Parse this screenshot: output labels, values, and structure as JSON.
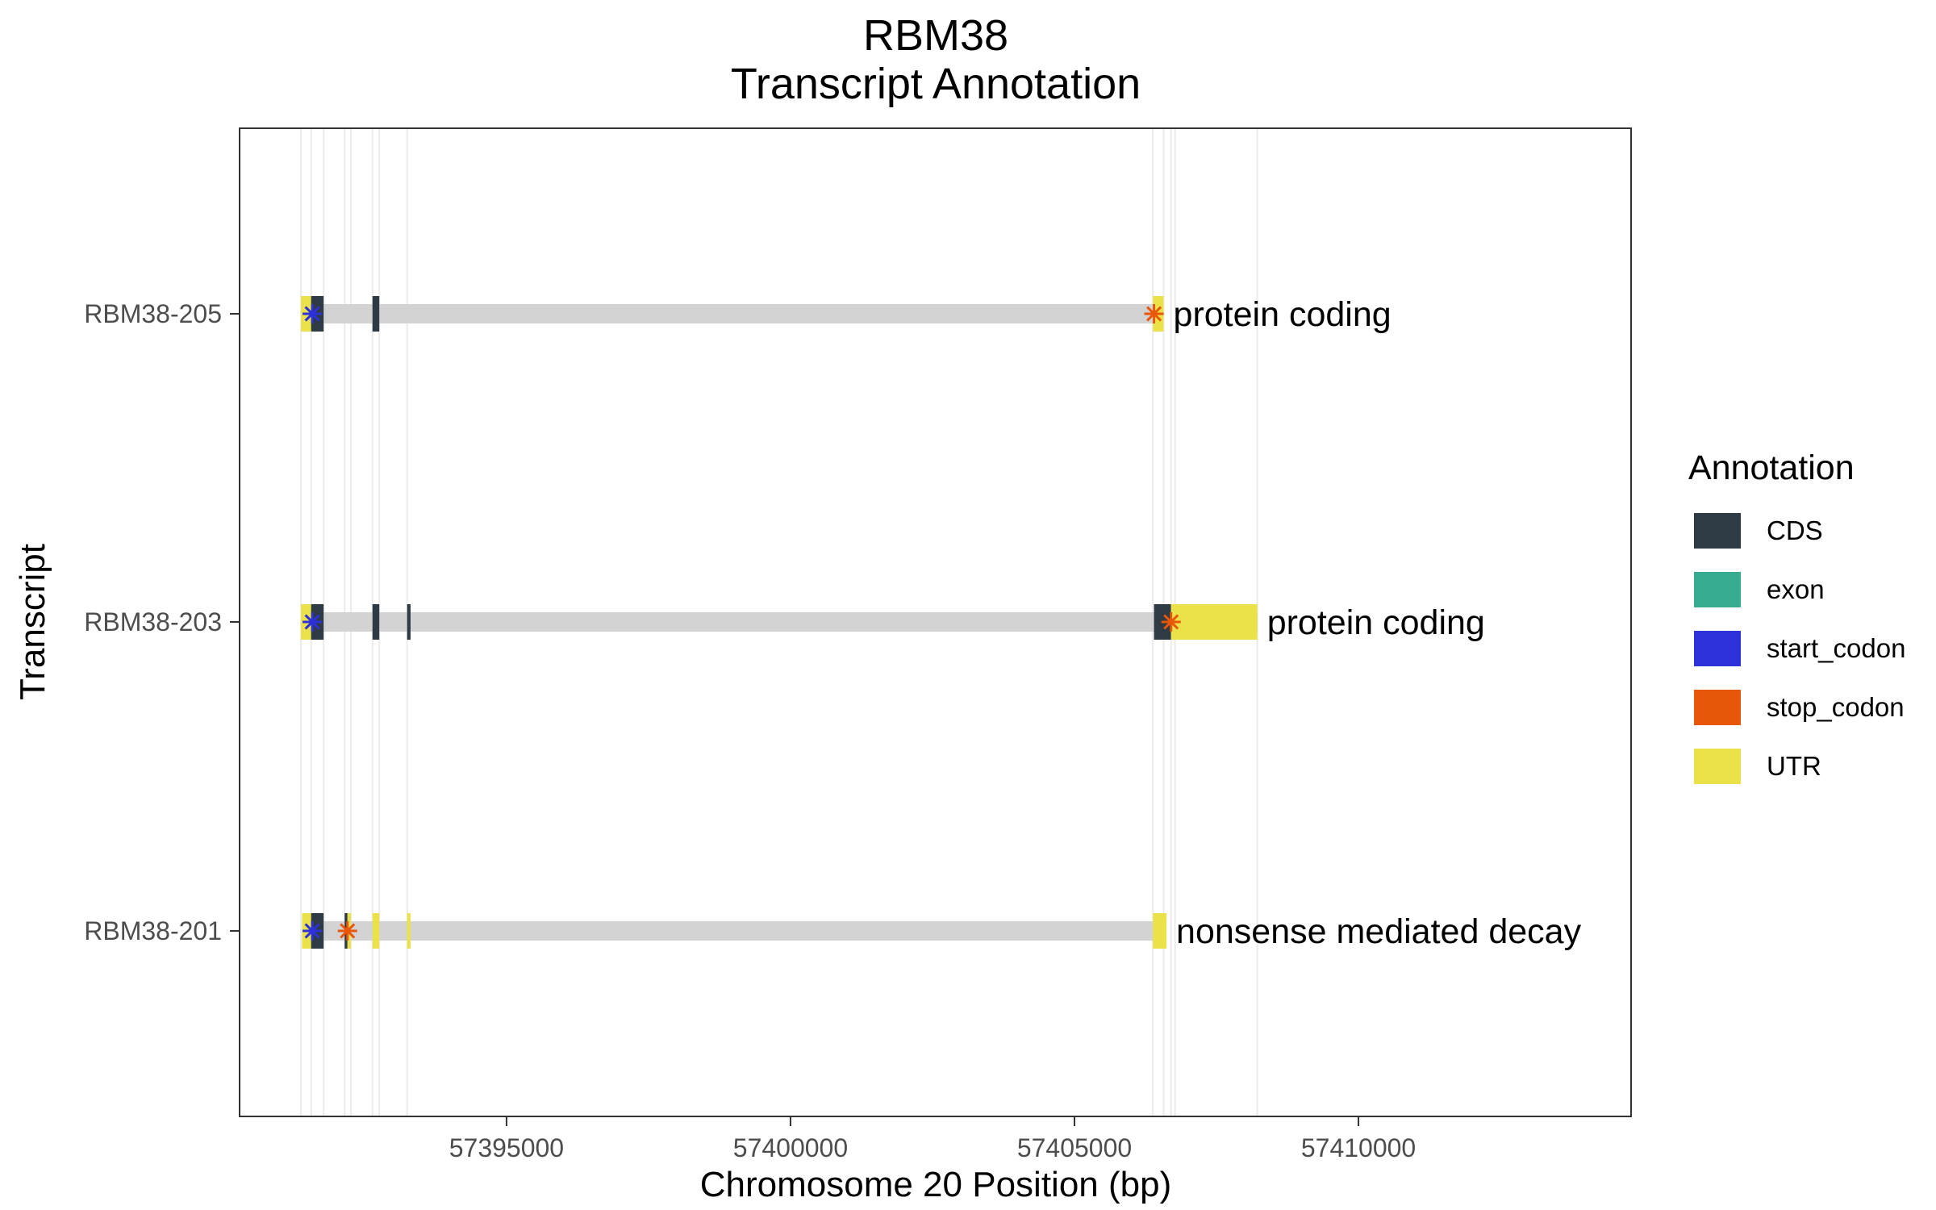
{
  "chart_data": {
    "type": "gene-track",
    "title": "RBM38",
    "subtitle": "Transcript Annotation",
    "xlabel": "Chromosome 20 Position (bp)",
    "ylabel": "Transcript",
    "xlim": [
      57390300,
      57414800
    ],
    "x_ticks": [
      57395000,
      57400000,
      57405000,
      57410000
    ],
    "x_tick_labels": [
      "57395000",
      "57400000",
      "57405000",
      "57410000"
    ],
    "grid": "vertical lines at exon boundaries",
    "transcripts": [
      {
        "name": "RBM38-205",
        "label": "protein coding",
        "span": [
          57391380,
          57406570
        ],
        "features": [
          {
            "type": "UTR",
            "start": 57391380,
            "end": 57391560
          },
          {
            "type": "CDS",
            "start": 57391560,
            "end": 57391780
          },
          {
            "type": "CDS",
            "start": 57392640,
            "end": 57392760
          },
          {
            "type": "UTR",
            "start": 57406380,
            "end": 57406570
          }
        ],
        "start_codon": 57391580,
        "stop_codon": 57406400
      },
      {
        "name": "RBM38-203",
        "label": "protein coding",
        "span": [
          57391380,
          57408220
        ],
        "features": [
          {
            "type": "UTR",
            "start": 57391380,
            "end": 57391560
          },
          {
            "type": "CDS",
            "start": 57391560,
            "end": 57391780
          },
          {
            "type": "CDS",
            "start": 57392640,
            "end": 57392760
          },
          {
            "type": "CDS",
            "start": 57393250,
            "end": 57393310
          },
          {
            "type": "CDS",
            "start": 57406400,
            "end": 57406700
          },
          {
            "type": "UTR",
            "start": 57406700,
            "end": 57408220
          }
        ],
        "start_codon": 57391580,
        "stop_codon": 57406700
      },
      {
        "name": "RBM38-201",
        "label": "nonsense mediated decay",
        "span": [
          57391400,
          57406620
        ],
        "features": [
          {
            "type": "UTR",
            "start": 57391400,
            "end": 57391560
          },
          {
            "type": "CDS",
            "start": 57391560,
            "end": 57391780
          },
          {
            "type": "CDS",
            "start": 57392150,
            "end": 57392200
          },
          {
            "type": "UTR",
            "start": 57392200,
            "end": 57392260
          },
          {
            "type": "UTR",
            "start": 57392640,
            "end": 57392760
          },
          {
            "type": "UTR",
            "start": 57393250,
            "end": 57393310
          },
          {
            "type": "UTR",
            "start": 57406380,
            "end": 57406620
          }
        ],
        "start_codon": 57391580,
        "stop_codon": 57392200
      }
    ],
    "gridlines_x": [
      57391380,
      57391560,
      57391780,
      57392150,
      57392260,
      57392640,
      57392760,
      57393250,
      57406380,
      57406570,
      57406700,
      57406770,
      57408220
    ],
    "legend": {
      "title": "Annotation",
      "position": "right",
      "items": [
        {
          "label": "CDS",
          "color": "#2e3a44"
        },
        {
          "label": "exon",
          "color": "#36ab8f"
        },
        {
          "label": "start_codon",
          "color": "#2c31d9"
        },
        {
          "label": "stop_codon",
          "color": "#e8560a"
        },
        {
          "label": "UTR",
          "color": "#ebe24a"
        }
      ]
    },
    "colors": {
      "intron": "#d3d3d3",
      "grid": "#ebebeb",
      "panel_border": "#333333"
    }
  }
}
